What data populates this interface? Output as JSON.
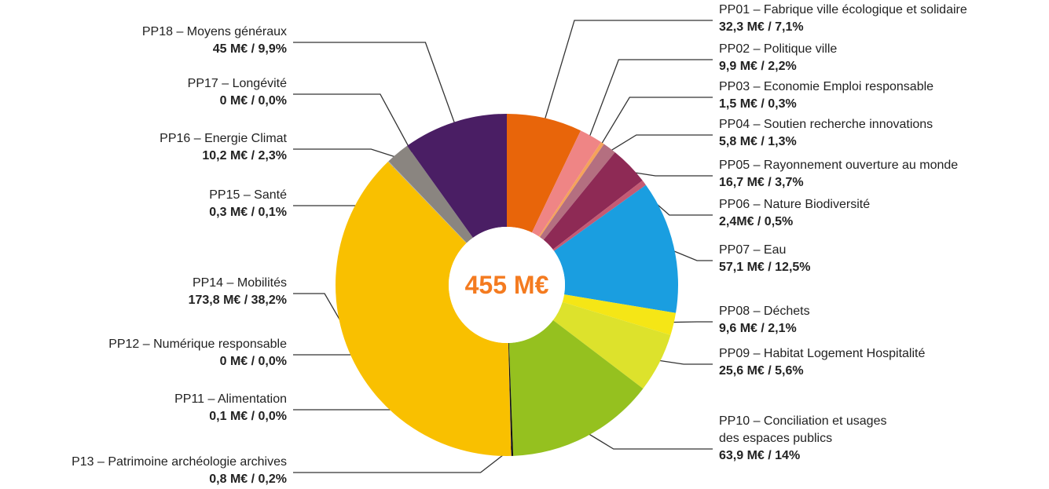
{
  "chart_data": {
    "type": "donut",
    "center_label": "455 M€",
    "categories": [
      "PP01 – Fabrique ville écologique et solidaire",
      "PP02 – Politique ville",
      "PP03 – Economie Emploi responsable",
      "PP04 – Soutien recherche innovations",
      "PP05 – Rayonnement ouverture au monde",
      "PP06 – Nature Biodiversité",
      "PP07 – Eau",
      "PP08 – Déchets",
      "PP09 – Habitat Logement Hospitalité",
      "PP10 – Conciliation et usages\ndes espaces publics",
      "P13 – Patrimoine archéologie archives",
      "PP12 – Numérique responsable",
      "PP11 – Alimentation",
      "PP14 – Mobilités",
      "PP15 – Santé",
      "PP16 – Energie Climat",
      "PP17 – Longévité",
      "PP18 – Moyens généraux"
    ],
    "values": [
      32.3,
      9.9,
      1.5,
      5.8,
      16.7,
      2.4,
      57.1,
      9.6,
      25.6,
      63.9,
      0.8,
      0,
      0.1,
      173.8,
      0.3,
      10.2,
      0,
      45
    ],
    "value_labels": [
      "32,3 M€ / 7,1%",
      "9,9 M€ / 2,2%",
      "1,5 M€ / 0,3%",
      "5,8 M€ / 1,3%",
      "16,7 M€ / 3,7%",
      "2,4M€ / 0,5%",
      "57,1 M€ / 12,5%",
      "9,6 M€ / 2,1%",
      "25,6 M€ / 5,6%",
      "63,9 M€ / 14%",
      "0,8 M€ / 0,2%",
      "0 M€ / 0,0%",
      "0,1 M€ / 0,0%",
      "173,8 M€ / 38,2%",
      "0,3 M€ / 0,1%",
      "10,2 M€ / 2,3%",
      "0 M€ / 0,0%",
      "45 M€ / 9,9%"
    ],
    "colors": [
      "#e8650a",
      "#ef8585",
      "#f5a35a",
      "#b46f80",
      "#8e2a55",
      "#c45a73",
      "#1a9ee0",
      "#f5e616",
      "#dde22c",
      "#95c11f",
      "#111111",
      "#9a9a9a",
      "#888888",
      "#f9c000",
      "#aaaaaa",
      "#8a8580",
      "#666666",
      "#4a1e64"
    ]
  }
}
